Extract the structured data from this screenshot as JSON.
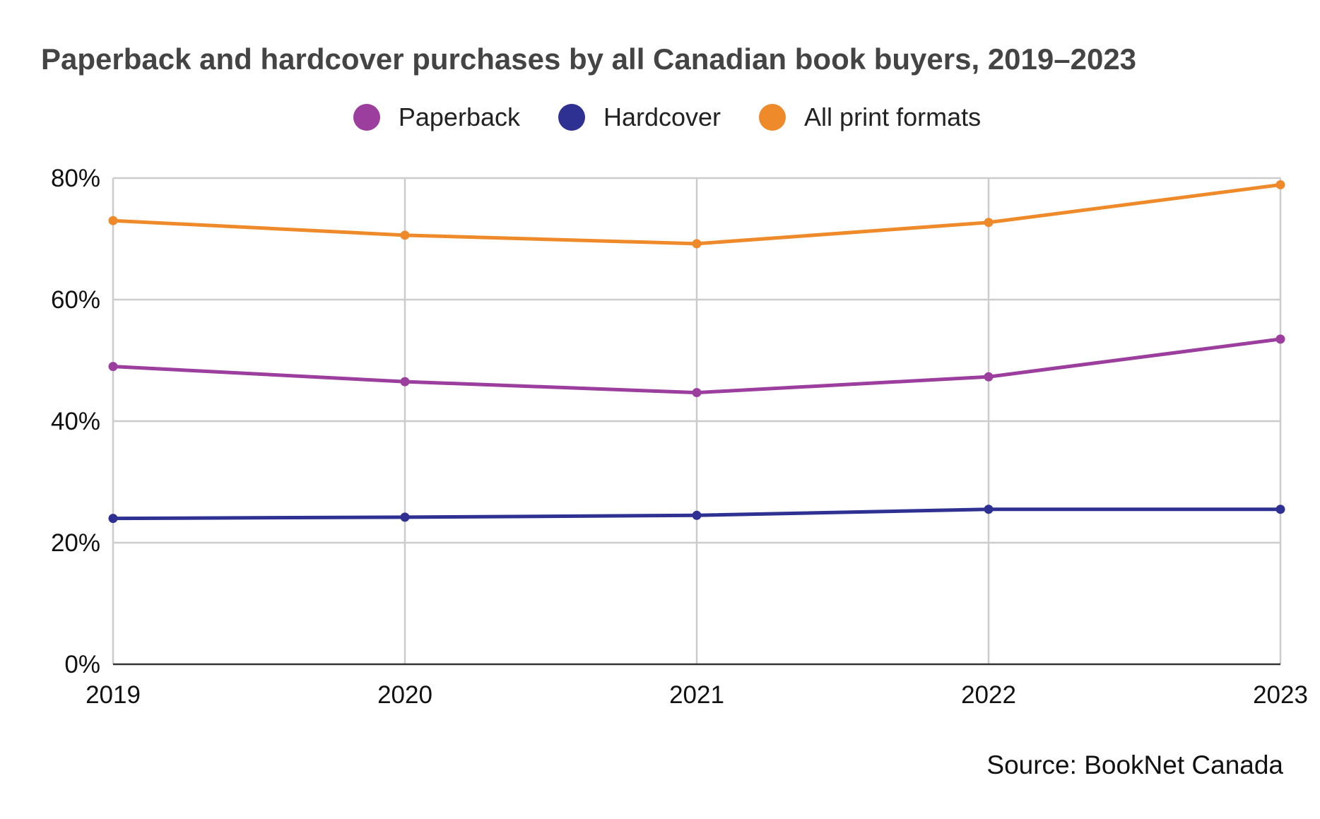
{
  "chart_data": {
    "type": "line",
    "title": "Paperback and hardcover purchases by all Canadian book buyers, 2019–2023",
    "xlabel": "",
    "ylabel": "",
    "categories": [
      "2019",
      "2020",
      "2021",
      "2022",
      "2023"
    ],
    "ylim": [
      0,
      80
    ],
    "yticks": [
      0,
      20,
      40,
      60,
      80
    ],
    "ytick_labels": [
      "0%",
      "20%",
      "40%",
      "60%",
      "80%"
    ],
    "grid": true,
    "legend_position": "top-center",
    "series": [
      {
        "name": "Paperback",
        "color": "#9b3e9d",
        "values": [
          49.0,
          46.5,
          44.7,
          47.3,
          53.5
        ]
      },
      {
        "name": "Hardcover",
        "color": "#2e3191",
        "values": [
          24.0,
          24.2,
          24.5,
          25.5,
          25.5
        ]
      },
      {
        "name": "All print formats",
        "color": "#ee8a2a",
        "values": [
          73.0,
          70.6,
          69.2,
          72.7,
          78.9
        ]
      }
    ]
  },
  "source": "Source: BookNet Canada"
}
